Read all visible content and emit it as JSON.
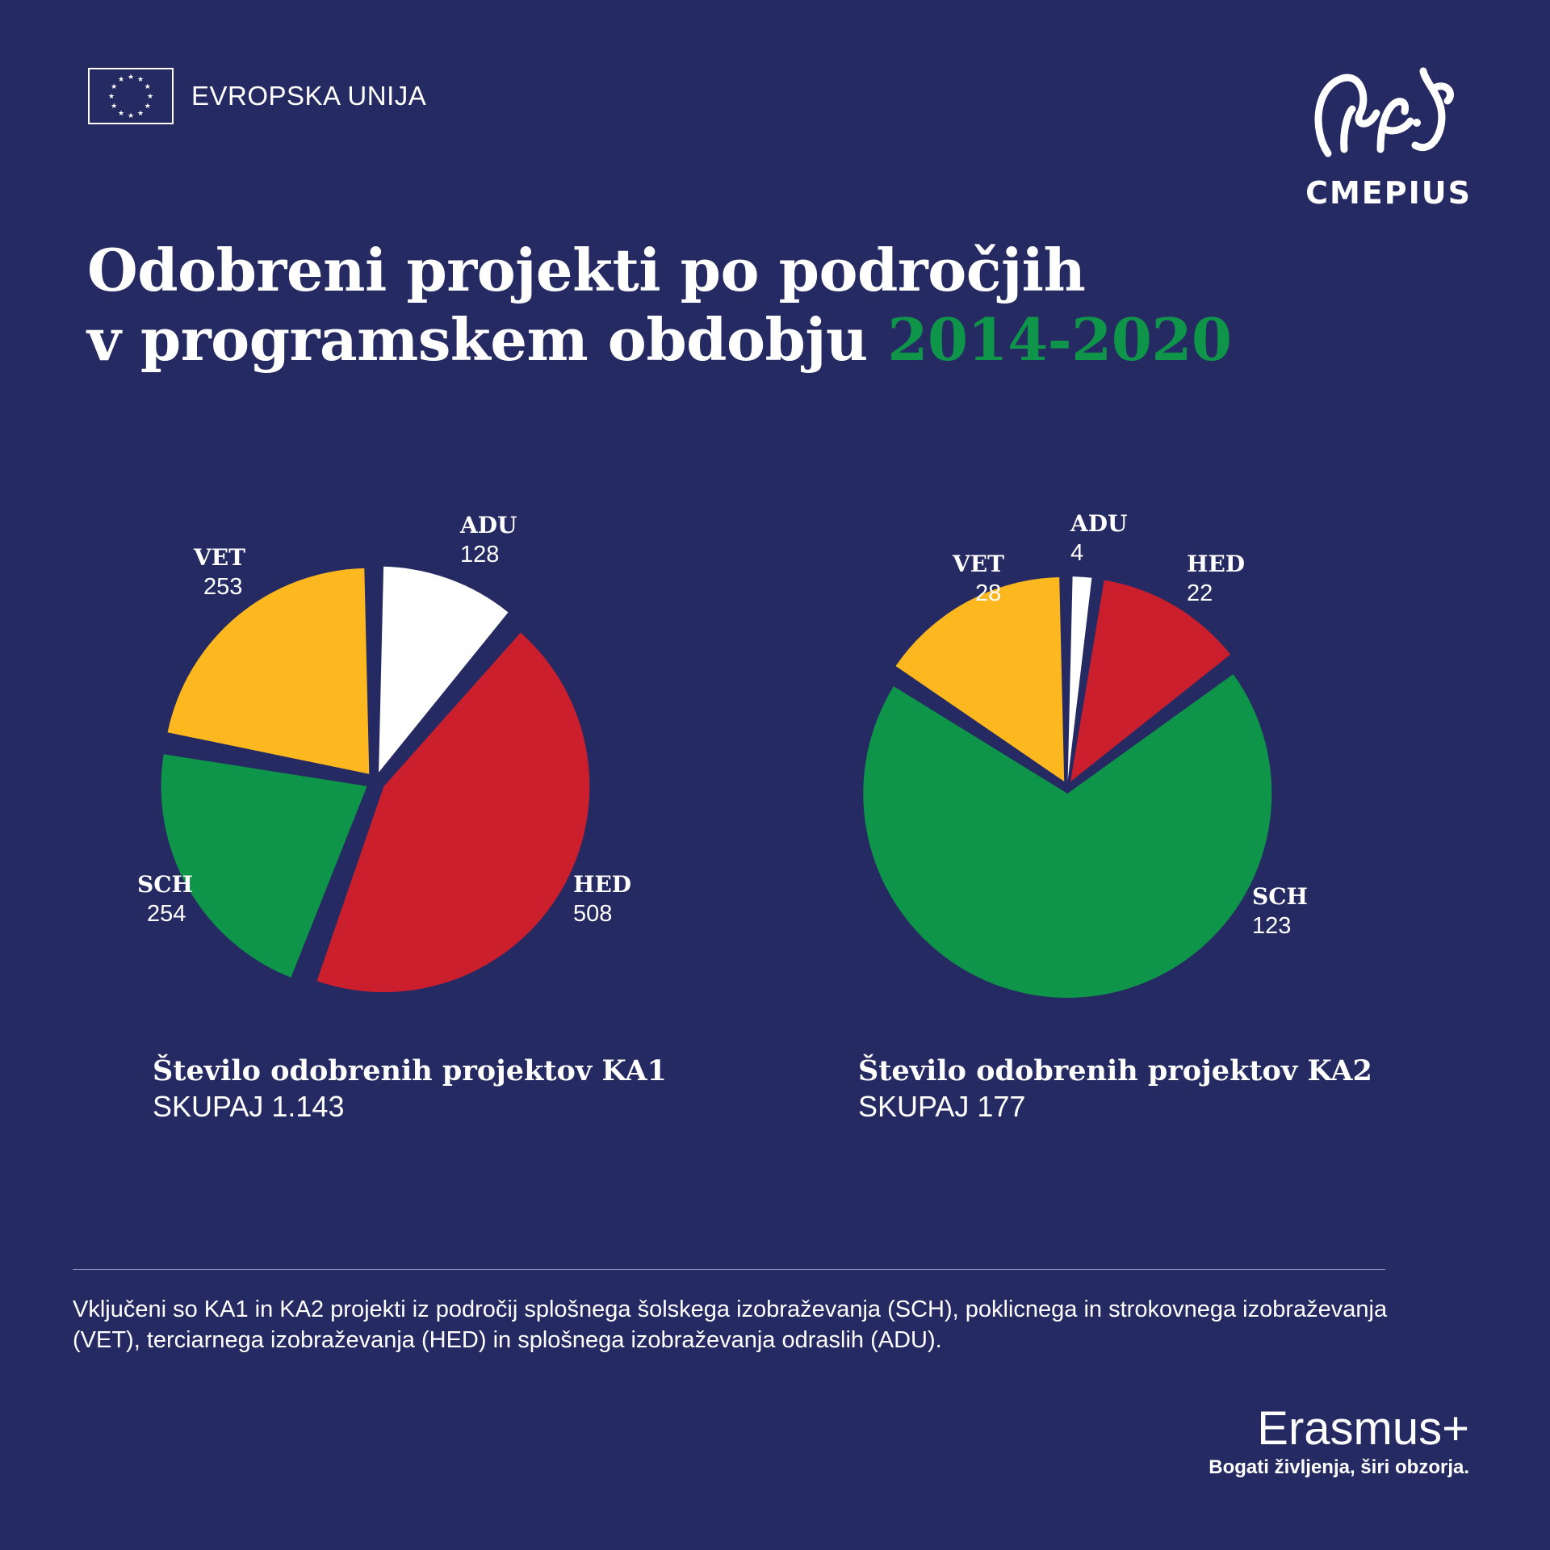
{
  "header": {
    "eu_label": "EVROPSKA UNIJA",
    "logo_text": "CMEPIUS"
  },
  "title": {
    "line1": "Odobreni projekti po področjih",
    "line2_prefix": "v programskem obdobju ",
    "line2_highlight": "2014-2020"
  },
  "colors": {
    "background": "#252a62",
    "ADU": "#ffffff",
    "HED": "#cc1f2e",
    "SCH": "#0f954a",
    "VET": "#fcb81e",
    "highlight": "#0f954a"
  },
  "chart_data": [
    {
      "type": "pie",
      "title": "Število odobrenih projektov KA1",
      "total_label": "SKUPAJ 1.143",
      "categories": [
        "ADU",
        "HED",
        "SCH",
        "VET"
      ],
      "values": [
        128,
        508,
        254,
        253
      ],
      "labels": [
        "128",
        "508",
        "254",
        "253"
      ]
    },
    {
      "type": "pie",
      "title": "Število odobrenih projektov KA2",
      "total_label": "SKUPAJ 177",
      "categories": [
        "ADU",
        "HED",
        "SCH",
        "VET"
      ],
      "values": [
        4,
        22,
        123,
        28
      ],
      "labels": [
        "4",
        "22",
        "123",
        "28"
      ]
    }
  ],
  "footnote": "Vključeni so KA1 in KA2 projekti iz področij splošnega šolskega izobraževanja (SCH), poklicnega in strokovnega izobraževanja (VET), terciarnega izobraževanja (HED) in splošnega izobraževanja odraslih (ADU).",
  "footer": {
    "brand": "Erasmus+",
    "tagline": "Bogati življenja, širi obzorja."
  }
}
